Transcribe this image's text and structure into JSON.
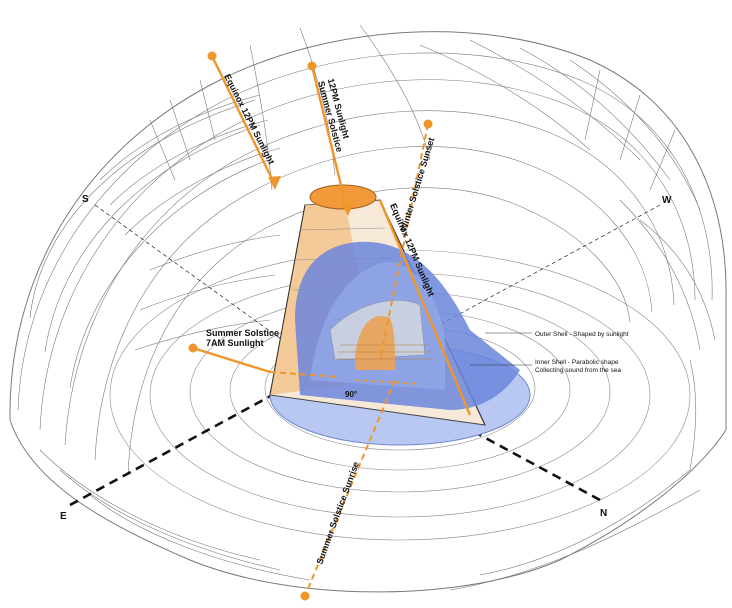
{
  "diagram": {
    "directions": {
      "south": "S",
      "west": "W",
      "east": "E",
      "north": "N"
    },
    "sun_labels": {
      "equinox_12pm_left": "Equinox 12PM Sunlight",
      "summer_solstice_12pm_line1": "Summer Solstice",
      "summer_solstice_12pm_line2": "12PM Sunlight",
      "winter_solstice_sunset": "Winter Solstice Sunset",
      "equinox_12pm_right": "Equinox 12PM Sunlight",
      "summer_solstice_7am_line1": "Summer Solstice",
      "summer_solstice_7am_line2": "7AM Sunlight",
      "summer_solstice_sunrise": "Summer Solstice Sunrise"
    },
    "annotations": {
      "outer_shell": "Outer Shell - Shaped by sunlight",
      "inner_shell_line1": "Inner Shell - Parabolic shape",
      "inner_shell_line2": "Collecting sound from the sea",
      "angle": "90°"
    },
    "colors": {
      "sun_path": "#f0952a",
      "inner_shell": "#5b79d6",
      "base_disk": "#a9bdf0",
      "axis": "#111111"
    }
  }
}
